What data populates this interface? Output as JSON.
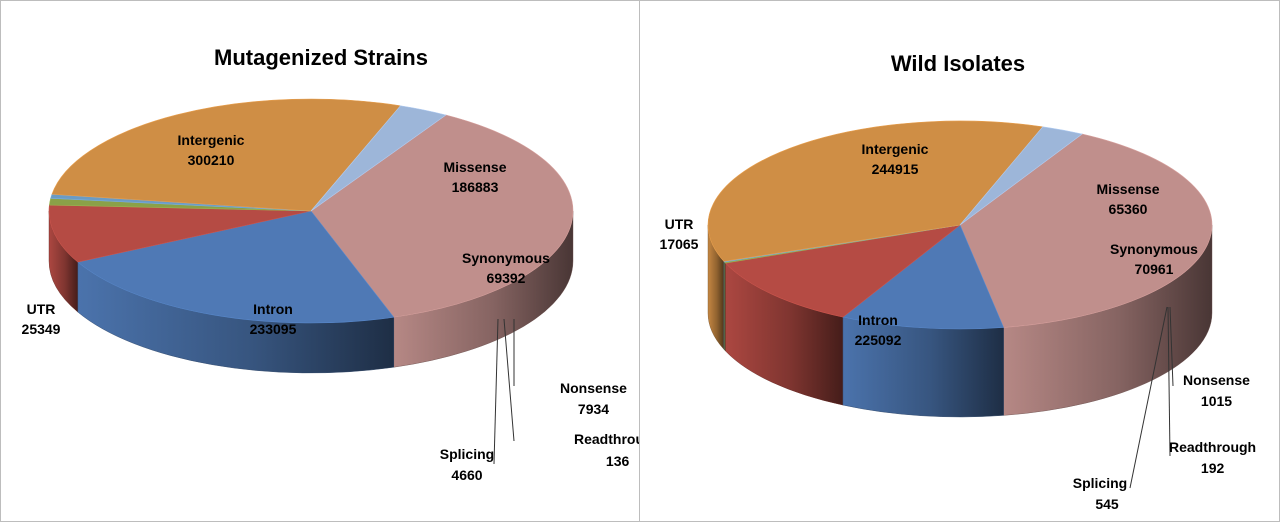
{
  "chart_data": [
    {
      "type": "pie",
      "title": "Mutagenized Strains",
      "categories": [
        "Intergenic",
        "Missense",
        "Synonymous",
        "Nonsense",
        "Readthrough",
        "Splicing",
        "Intron",
        "UTR"
      ],
      "values": [
        300210,
        186883,
        69392,
        7934,
        136,
        4660,
        233095,
        25349
      ],
      "colors": [
        "#c08f8c",
        "#4f79b5",
        "#b54b44",
        "#8aa148",
        "#6e8fb8",
        "#6b9bc4",
        "#cf8e45",
        "#9db6d9"
      ]
    },
    {
      "type": "pie",
      "title": "Wild Isolates",
      "categories": [
        "Intergenic",
        "Missense",
        "Synonymous",
        "Nonsense",
        "Readthrough",
        "Splicing",
        "Intron",
        "UTR"
      ],
      "values": [
        244915,
        65360,
        70961,
        1015,
        192,
        545,
        225092,
        17065
      ],
      "colors": [
        "#c08f8c",
        "#4f79b5",
        "#b54b44",
        "#8aa148",
        "#6e8fb8",
        "#6b9bc4",
        "#cf8e45",
        "#9db6d9"
      ]
    }
  ]
}
